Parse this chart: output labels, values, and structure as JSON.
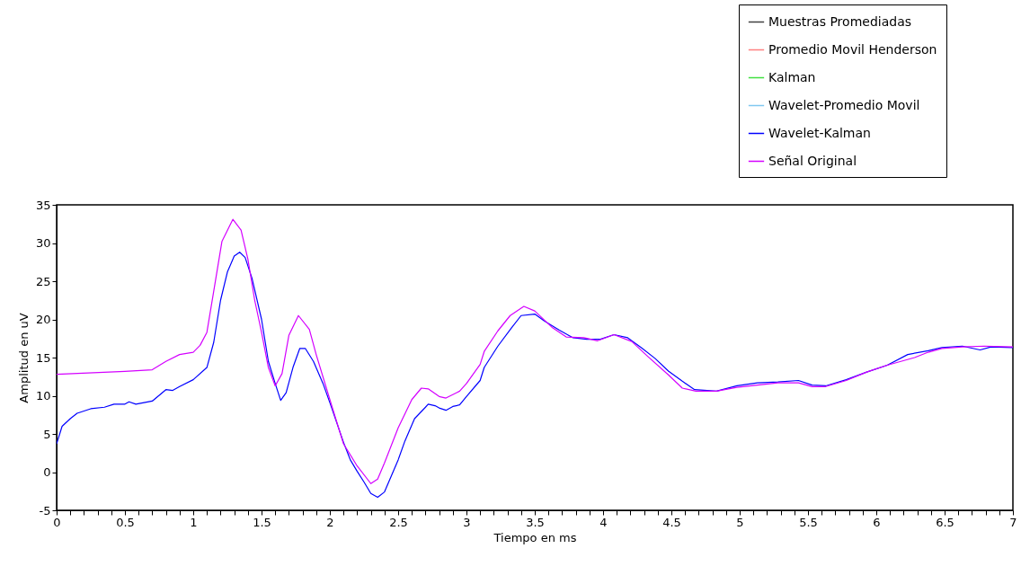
{
  "chart_data": {
    "type": "line",
    "xlabel": "Tiempo en ms",
    "ylabel": "Amplitud en uV",
    "xlim": [
      0,
      7
    ],
    "ylim": [
      -5,
      35
    ],
    "xticks": [
      0,
      {
        "value": 0.1,
        "label": null
      },
      {
        "value": 0.2,
        "label": null
      },
      {
        "value": 0.3,
        "label": null
      },
      {
        "value": 0.4,
        "label": null
      },
      0.5,
      {
        "value": 0.6,
        "label": null
      },
      {
        "value": 0.7,
        "label": null
      },
      {
        "value": 0.8,
        "label": null
      },
      {
        "value": 0.9,
        "label": null
      },
      1,
      {
        "value": 1.1,
        "label": null
      },
      {
        "value": 1.2,
        "label": null
      },
      {
        "value": 1.3,
        "label": null
      },
      {
        "value": 1.4,
        "label": null
      },
      1.5,
      {
        "value": 1.6,
        "label": null
      },
      {
        "value": 1.7,
        "label": null
      },
      {
        "value": 1.8,
        "label": null
      },
      {
        "value": 1.9,
        "label": null
      },
      2,
      {
        "value": 2.1,
        "label": null
      },
      {
        "value": 2.2,
        "label": null
      },
      {
        "value": 2.3,
        "label": null
      },
      {
        "value": 2.4,
        "label": null
      },
      2.5,
      {
        "value": 2.6,
        "label": null
      },
      {
        "value": 2.7,
        "label": null
      },
      {
        "value": 2.8,
        "label": null
      },
      {
        "value": 2.9,
        "label": null
      },
      3,
      {
        "value": 3.1,
        "label": null
      },
      {
        "value": 3.2,
        "label": null
      },
      {
        "value": 3.3,
        "label": null
      },
      {
        "value": 3.4,
        "label": null
      },
      3.5,
      {
        "value": 3.6,
        "label": null
      },
      {
        "value": 3.7,
        "label": null
      },
      {
        "value": 3.8,
        "label": null
      },
      {
        "value": 3.9,
        "label": null
      },
      4,
      {
        "value": 4.1,
        "label": null
      },
      {
        "value": 4.2,
        "label": null
      },
      {
        "value": 4.3,
        "label": null
      },
      {
        "value": 4.4,
        "label": null
      },
      4.5,
      {
        "value": 4.6,
        "label": null
      },
      {
        "value": 4.7,
        "label": null
      },
      {
        "value": 4.8,
        "label": null
      },
      {
        "value": 4.9,
        "label": null
      },
      5,
      {
        "value": 5.1,
        "label": null
      },
      {
        "value": 5.2,
        "label": null
      },
      {
        "value": 5.3,
        "label": null
      },
      {
        "value": 5.4,
        "label": null
      },
      5.5,
      {
        "value": 5.6,
        "label": null
      },
      {
        "value": 5.7,
        "label": null
      },
      {
        "value": 5.8,
        "label": null
      },
      {
        "value": 5.9,
        "label": null
      },
      6,
      {
        "value": 6.1,
        "label": null
      },
      {
        "value": 6.2,
        "label": null
      },
      {
        "value": 6.3,
        "label": null
      },
      {
        "value": 6.4,
        "label": null
      },
      6.5,
      {
        "value": 6.6,
        "label": null
      },
      {
        "value": 6.7,
        "label": null
      },
      {
        "value": 6.8,
        "label": null
      },
      {
        "value": 6.9,
        "label": null
      },
      7
    ],
    "yticks": [
      -5,
      0,
      5,
      10,
      15,
      20,
      25,
      30,
      35
    ],
    "grid": false,
    "legend": "top right",
    "marker": "none",
    "line_style": "solid",
    "series": [
      {
        "name": "Muestras Promediadas",
        "color": "#404040"
      },
      {
        "name": "Promedio Movil Henderson",
        "color": "#ff8080"
      },
      {
        "name": "Kalman",
        "color": "#40e040"
      },
      {
        "name": "Wavelet-Promedio Movil",
        "color": "#80c8f0"
      },
      {
        "name": "Wavelet-Kalman",
        "color": "#0000ff",
        "x": [
          0,
          0.04,
          0.1,
          0.15,
          0.25,
          0.35,
          0.42,
          0.5,
          0.53,
          0.58,
          0.7,
          0.8,
          0.85,
          0.9,
          1.0,
          1.1,
          1.15,
          1.2,
          1.25,
          1.3,
          1.34,
          1.38,
          1.43,
          1.5,
          1.55,
          1.6,
          1.64,
          1.68,
          1.73,
          1.78,
          1.82,
          1.88,
          1.95,
          2.0,
          2.1,
          2.15,
          2.2,
          2.25,
          2.3,
          2.35,
          2.4,
          2.45,
          2.5,
          2.55,
          2.62,
          2.7,
          2.72,
          2.77,
          2.8,
          2.85,
          2.9,
          2.95,
          3.0,
          3.1,
          3.13,
          3.23,
          3.33,
          3.4,
          3.5,
          3.57,
          3.68,
          3.78,
          3.88,
          3.98,
          4.08,
          4.18,
          4.28,
          4.38,
          4.48,
          4.58,
          4.67,
          4.83,
          4.98,
          5.13,
          5.28,
          5.43,
          5.53,
          5.63,
          5.78,
          5.93,
          6.08,
          6.23,
          6.38,
          6.48,
          6.63,
          6.76,
          6.84,
          7.0
        ],
        "values": [
          3.7,
          6.0,
          7.0,
          7.7,
          8.3,
          8.5,
          8.9,
          8.9,
          9.2,
          8.9,
          9.3,
          10.8,
          10.7,
          11.2,
          12.1,
          13.7,
          17.0,
          22.5,
          26.2,
          28.3,
          28.8,
          28.1,
          25.4,
          20.0,
          14.5,
          11.6,
          9.4,
          10.4,
          13.7,
          16.2,
          16.2,
          14.5,
          11.6,
          9.1,
          3.9,
          1.6,
          0.1,
          -1.3,
          -2.8,
          -3.3,
          -2.6,
          -0.5,
          1.6,
          4.1,
          7.0,
          8.5,
          8.9,
          8.7,
          8.4,
          8.1,
          8.6,
          8.8,
          9.9,
          12.0,
          13.7,
          16.5,
          18.9,
          20.5,
          20.7,
          19.8,
          18.6,
          17.6,
          17.4,
          17.4,
          18.0,
          17.6,
          16.3,
          14.9,
          13.2,
          11.9,
          10.8,
          10.6,
          11.3,
          11.7,
          11.8,
          12.0,
          11.4,
          11.3,
          12.1,
          13.1,
          14.0,
          15.4,
          15.9,
          16.3,
          16.5,
          16.0,
          16.4,
          16.3
        ]
      },
      {
        "name": "Señal Original",
        "color": "#d400ff",
        "x": [
          0,
          0.5,
          0.7,
          0.8,
          0.9,
          1.0,
          1.05,
          1.1,
          1.15,
          1.21,
          1.29,
          1.35,
          1.4,
          1.45,
          1.5,
          1.55,
          1.6,
          1.65,
          1.7,
          1.77,
          1.85,
          1.9,
          2.0,
          2.1,
          2.2,
          2.3,
          2.35,
          2.4,
          2.5,
          2.6,
          2.67,
          2.72,
          2.8,
          2.85,
          2.95,
          3.0,
          3.1,
          3.13,
          3.23,
          3.32,
          3.42,
          3.5,
          3.63,
          3.73,
          3.86,
          3.96,
          4.08,
          4.21,
          4.33,
          4.48,
          4.58,
          4.68,
          4.83,
          4.98,
          5.13,
          5.28,
          5.43,
          5.53,
          5.63,
          5.78,
          5.93,
          6.08,
          6.28,
          6.38,
          6.48,
          6.63,
          6.79,
          7.0
        ],
        "values": [
          12.8,
          13.2,
          13.4,
          14.5,
          15.4,
          15.7,
          16.6,
          18.3,
          23.7,
          30.2,
          33.1,
          31.7,
          27.9,
          22.5,
          18.3,
          13.7,
          11.3,
          12.9,
          17.9,
          20.5,
          18.7,
          15.4,
          9.5,
          3.7,
          0.8,
          -1.5,
          -0.9,
          1.2,
          5.8,
          9.5,
          11.0,
          10.9,
          9.9,
          9.7,
          10.6,
          11.6,
          14.1,
          15.8,
          18.5,
          20.5,
          21.7,
          21.1,
          18.9,
          17.7,
          17.6,
          17.2,
          18.0,
          17.1,
          15.1,
          12.7,
          11.0,
          10.6,
          10.6,
          11.1,
          11.4,
          11.7,
          11.7,
          11.2,
          11.2,
          12.0,
          13.1,
          14.0,
          15.0,
          15.7,
          16.2,
          16.4,
          16.5,
          16.4
        ]
      }
    ]
  }
}
